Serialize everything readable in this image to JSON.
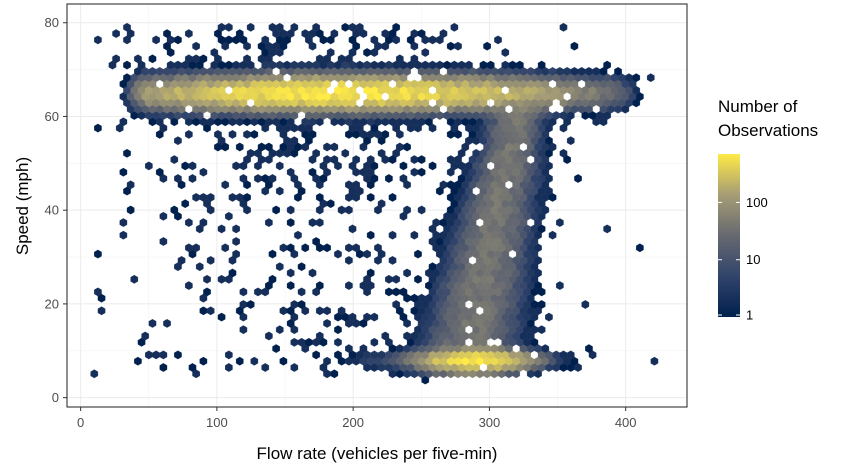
{
  "chart_data": {
    "type": "heatmap",
    "subtype": "hexbin",
    "title": "",
    "xlabel": "Flow rate (vehicles per five-min)",
    "ylabel": "Speed (mph)",
    "xlim": [
      -10,
      445
    ],
    "ylim": [
      -2,
      84
    ],
    "x_ticks": [
      0,
      100,
      200,
      300,
      400
    ],
    "y_ticks": [
      0,
      20,
      40,
      60,
      80
    ],
    "x_tick_labels": [
      "0",
      "100",
      "200",
      "300",
      "400"
    ],
    "y_tick_labels": [
      "0",
      "20",
      "40",
      "60",
      "80"
    ],
    "grid": true,
    "color_scale": "log10",
    "colors": {
      "low": "#00204d",
      "mid": "#7c7b78",
      "high": "#ffea46"
    },
    "legend": {
      "title_lines": [
        "Number of",
        "Observations"
      ],
      "position": "right",
      "breaks": [
        1,
        10,
        100
      ],
      "labels": [
        "1",
        "10",
        "100"
      ],
      "max_count": 700
    },
    "density_clusters": [
      {
        "name": "free-flow band",
        "x_range": [
          50,
          390
        ],
        "y_center": 65,
        "y_spread": 2.5,
        "peak_x": 190,
        "peak_count": 650
      },
      {
        "name": "congested band",
        "x_range": [
          220,
          360
        ],
        "y_center": 8,
        "y_spread": 1.5,
        "peak_x": 290,
        "peak_count": 700
      },
      {
        "name": "transition branch",
        "from": [
          320,
          60
        ],
        "to": [
          285,
          10
        ],
        "peak_count": 40
      }
    ]
  }
}
